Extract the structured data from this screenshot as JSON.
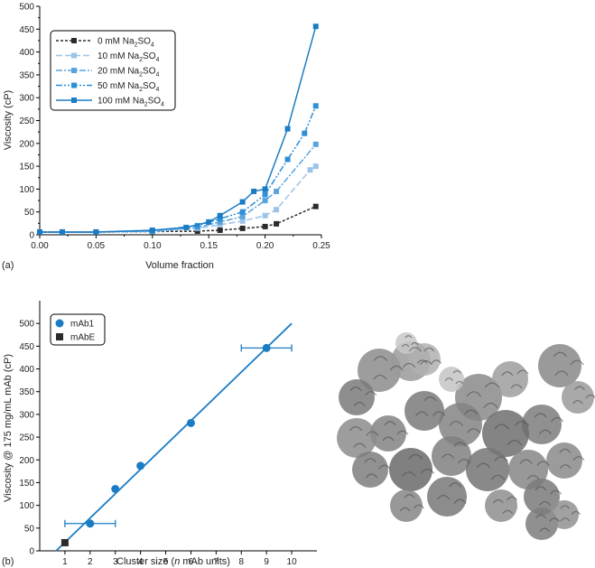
{
  "chart_data": [
    {
      "type": "line",
      "panel_label": "(a)",
      "xlabel": "Volume fraction",
      "ylabel": "Viscosity (cP)",
      "xlim": [
        0,
        0.25
      ],
      "ylim": [
        0,
        500
      ],
      "xticks": [
        "0.00",
        "0.05",
        "0.10",
        "0.15",
        "0.20",
        "0.25"
      ],
      "yticks": [
        "0",
        "50",
        "100",
        "150",
        "200",
        "250",
        "300",
        "350",
        "400",
        "450",
        "500"
      ],
      "legend_position": "top-left",
      "series": [
        {
          "name": "0 mM Na₂SO₄",
          "label_main": "0 mM Na",
          "label_sub": "2",
          "label_tail": "SO",
          "label_sub2": "4",
          "color": "#2b2b2b",
          "dash": "3,2",
          "points": [
            [
              0.0,
              6
            ],
            [
              0.02,
              6
            ],
            [
              0.05,
              6
            ],
            [
              0.1,
              7
            ],
            [
              0.14,
              8
            ],
            [
              0.16,
              10
            ],
            [
              0.18,
              14
            ],
            [
              0.2,
              18
            ],
            [
              0.21,
              24
            ],
            [
              0.245,
              62
            ]
          ]
        },
        {
          "name": "10 mM Na₂SO₄",
          "label_main": "10 mM Na",
          "label_sub": "2",
          "label_tail": "SO",
          "label_sub2": "4",
          "color": "#9cc3e8",
          "dash": "7,3",
          "points": [
            [
              0.0,
              6
            ],
            [
              0.02,
              6
            ],
            [
              0.05,
              6
            ],
            [
              0.1,
              7
            ],
            [
              0.14,
              14
            ],
            [
              0.16,
              22
            ],
            [
              0.18,
              30
            ],
            [
              0.2,
              42
            ],
            [
              0.21,
              55
            ],
            [
              0.24,
              142
            ],
            [
              0.245,
              150
            ]
          ]
        },
        {
          "name": "20 mM Na₂SO₄",
          "label_main": "20 mM Na",
          "label_sub": "2",
          "label_tail": "SO",
          "label_sub2": "4",
          "color": "#5aa3dd",
          "dash": "7,2,2,2",
          "points": [
            [
              0.0,
              6
            ],
            [
              0.02,
              6
            ],
            [
              0.05,
              6
            ],
            [
              0.1,
              8
            ],
            [
              0.14,
              16
            ],
            [
              0.16,
              28
            ],
            [
              0.18,
              40
            ],
            [
              0.2,
              75
            ],
            [
              0.21,
              95
            ],
            [
              0.245,
              198
            ]
          ]
        },
        {
          "name": "50 mM Na₂SO₄",
          "label_main": "50 mM Na",
          "label_sub": "2",
          "label_tail": "SO",
          "label_sub2": "4",
          "color": "#2f8fd6",
          "dash": "7,2,2,2,2,2",
          "points": [
            [
              0.0,
              6
            ],
            [
              0.02,
              6
            ],
            [
              0.05,
              6
            ],
            [
              0.1,
              9
            ],
            [
              0.14,
              20
            ],
            [
              0.16,
              35
            ],
            [
              0.18,
              50
            ],
            [
              0.2,
              88
            ],
            [
              0.22,
              165
            ],
            [
              0.235,
              222
            ],
            [
              0.245,
              282
            ]
          ]
        },
        {
          "name": "100 mM Na₂SO₄",
          "label_main": "100 mM Na",
          "label_sub": "2",
          "label_tail": "SO",
          "label_sub2": "4",
          "color": "#1a7cc4",
          "dash": "",
          "points": [
            [
              0.0,
              6
            ],
            [
              0.02,
              6
            ],
            [
              0.05,
              6
            ],
            [
              0.1,
              10
            ],
            [
              0.13,
              16
            ],
            [
              0.15,
              28
            ],
            [
              0.16,
              42
            ],
            [
              0.18,
              72
            ],
            [
              0.19,
              95
            ],
            [
              0.2,
              100
            ],
            [
              0.22,
              232
            ],
            [
              0.245,
              456
            ]
          ]
        }
      ]
    },
    {
      "type": "scatter",
      "panel_label": "(b)",
      "xlabel_pre": "Cluster size (",
      "xlabel_italic": "n",
      "xlabel_post": " mAb units)",
      "ylabel": "Viscosity @ 175 mg/mL mAb (cP)",
      "xlim": [
        0,
        11
      ],
      "ylim": [
        0,
        550
      ],
      "xticks": [
        "1",
        "2",
        "3",
        "4",
        "5",
        "6",
        "7",
        "8",
        "9",
        "10"
      ],
      "yticks": [
        "0",
        "50",
        "100",
        "150",
        "200",
        "250",
        "300",
        "350",
        "400",
        "450",
        "500"
      ],
      "legend_position": "top-left",
      "series": [
        {
          "name": "mAb1",
          "marker": "circle",
          "color": "#1a7cc4",
          "points": [
            [
              2,
              60
            ],
            [
              3,
              136
            ],
            [
              4,
              187
            ],
            [
              6,
              281
            ],
            [
              9,
              446
            ]
          ],
          "xerr": [
            [
              2,
              1
            ],
            [
              9,
              1
            ]
          ]
        },
        {
          "name": "mAbE",
          "marker": "square",
          "color": "#2b2b2b",
          "points": [
            [
              1,
              18
            ]
          ]
        }
      ],
      "fit_line": {
        "x": [
          0.65,
          10
        ],
        "y": [
          0,
          500
        ],
        "color": "#1a7cc4"
      }
    }
  ]
}
